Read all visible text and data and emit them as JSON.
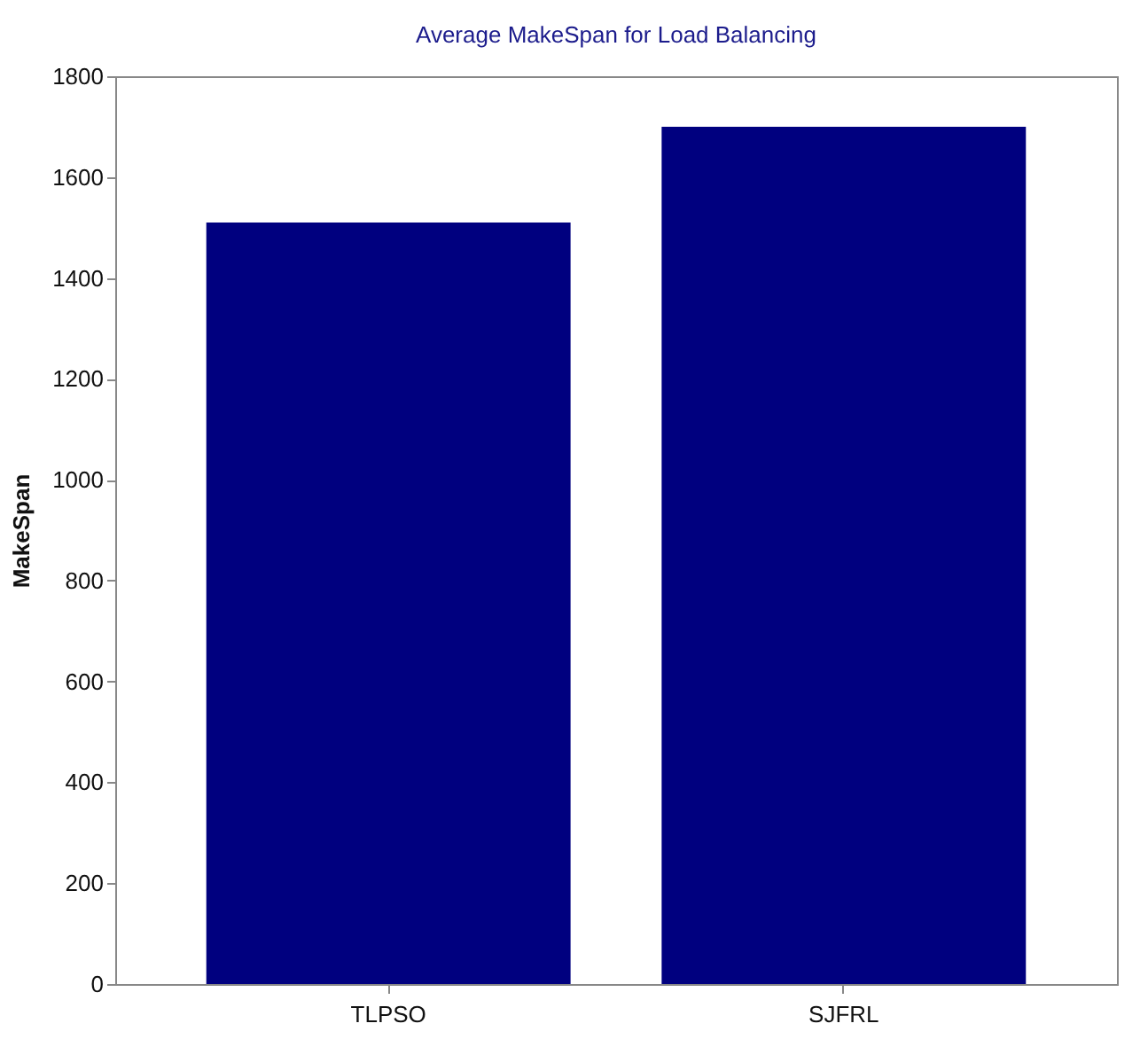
{
  "chart_data": {
    "type": "bar",
    "title": "Average MakeSpan for Load Balancing",
    "ylabel": "MakeSpan",
    "categories": [
      "TLPSO",
      "SJFRL"
    ],
    "values": [
      1510,
      1700
    ],
    "color": "#00007f",
    "ylim": [
      0,
      1800
    ],
    "yticks": [
      0,
      200,
      400,
      600,
      800,
      1000,
      1200,
      1400,
      1600,
      1800
    ],
    "grid": false
  }
}
